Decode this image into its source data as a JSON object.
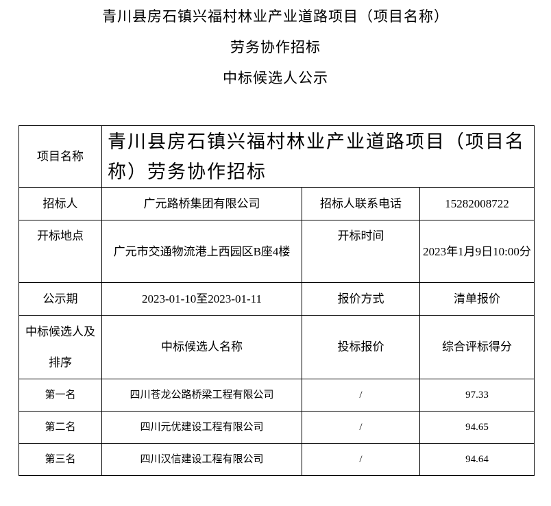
{
  "title": {
    "line1": "青川县房石镇兴福村林业产业道路项目（项目名称）",
    "line2": "劳务协作招标",
    "line3": "中标候选人公示"
  },
  "table": {
    "project_name_label": "项目名称",
    "project_name": "青川县房石镇兴福村林业产业道路项目（项目名称）劳务协作招标",
    "tenderer_label": "招标人",
    "tenderer": "广元路桥集团有限公司",
    "phone_label": "招标人联系电话",
    "phone": "15282008722",
    "location_label": "开标地点",
    "location": "广元市交通物流港上西园区B座4楼",
    "time_label": "开标时间",
    "time": "2023年1月9日10:00分",
    "period_label": "公示期",
    "period": "2023-01-10至2023-01-11",
    "quote_method_label": "报价方式",
    "quote_method": "清单报价",
    "rank_header": "中标候选人及排序",
    "name_header": "中标候选人名称",
    "bid_header": "投标报价",
    "score_header": "综合评标得分",
    "candidates": [
      {
        "rank": "第一名",
        "name": "四川苍龙公路桥梁工程有限公司",
        "bid": "/",
        "score": "97.33"
      },
      {
        "rank": "第二名",
        "name": "四川元优建设工程有限公司",
        "bid": "/",
        "score": "94.65"
      },
      {
        "rank": "第三名",
        "name": "四川汉信建设工程有限公司",
        "bid": "/",
        "score": "94.64"
      }
    ]
  }
}
